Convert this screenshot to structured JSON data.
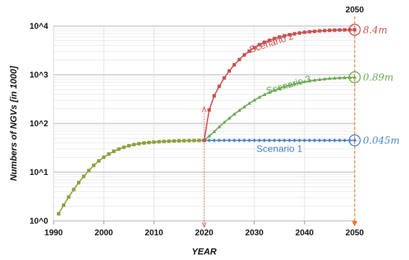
{
  "chart_data": {
    "type": "line",
    "title": "",
    "xlabel": "YEAR",
    "ylabel": "Numbers of NGVs [in 1000]",
    "x_range": [
      1990,
      2050
    ],
    "ylim": [
      1,
      10000
    ],
    "yscale": "log",
    "grid": true,
    "legend": "inline",
    "x_ticks": [
      "1990",
      "2000",
      "2010",
      "2020",
      "2030",
      "2040",
      "2050"
    ],
    "highlight_tick": "2020",
    "y_ticks": [
      {
        "label": "10^0",
        "value": 1
      },
      {
        "label": "10^1",
        "value": 10
      },
      {
        "label": "10^2",
        "value": 100
      },
      {
        "label": "10^3",
        "value": 1000
      },
      {
        "label": "10^4",
        "value": 10000
      }
    ],
    "top_marker": "2050",
    "colors": {
      "historical": "#8c9f3a",
      "scenario1": "#4a7fc1",
      "scenario2": "#c94f4f",
      "scenario3": "#6aa84f",
      "marker_2020": "#d9534f",
      "marker_2050": "#e87722",
      "highlight_tick": "#e02020"
    },
    "historical": {
      "x": [
        1991,
        1992,
        1993,
        1994,
        1995,
        1996,
        1997,
        1998,
        1999,
        2000,
        2001,
        2002,
        2003,
        2004,
        2005,
        2006,
        2007,
        2008,
        2009,
        2010,
        2011,
        2012,
        2013,
        2014,
        2015,
        2016,
        2017,
        2018,
        2019,
        2020
      ],
      "y": [
        1.4,
        2.1,
        3.1,
        4.4,
        6.1,
        8.2,
        10.8,
        13.8,
        17.0,
        20.3,
        23.6,
        26.8,
        29.8,
        32.5,
        34.9,
        36.9,
        38.5,
        39.7,
        40.7,
        41.5,
        42.2,
        42.8,
        43.3,
        43.7,
        44.0,
        44.3,
        44.5,
        44.7,
        44.9,
        45.0
      ]
    },
    "series": [
      {
        "name": "Scenario 1",
        "end_label": "0.045m",
        "x": [
          2020,
          2021,
          2022,
          2023,
          2024,
          2025,
          2026,
          2027,
          2028,
          2029,
          2030,
          2031,
          2032,
          2033,
          2034,
          2035,
          2036,
          2037,
          2038,
          2039,
          2040,
          2041,
          2042,
          2043,
          2044,
          2045,
          2046,
          2047,
          2048,
          2049,
          2050
        ],
        "y": [
          45,
          45,
          45,
          45,
          45,
          45,
          45,
          45,
          45,
          45,
          45,
          45,
          45,
          45,
          45,
          45,
          45,
          45,
          45,
          45,
          45,
          45,
          45,
          45,
          45,
          45,
          45,
          45,
          45,
          45,
          45
        ]
      },
      {
        "name": "Scenario 2",
        "end_label": "8.4m",
        "x": [
          2020,
          2021,
          2022,
          2023,
          2024,
          2025,
          2026,
          2027,
          2028,
          2029,
          2030,
          2031,
          2032,
          2033,
          2034,
          2035,
          2036,
          2037,
          2038,
          2039,
          2040,
          2041,
          2042,
          2043,
          2044,
          2045,
          2046,
          2047,
          2048,
          2049,
          2050
        ],
        "y": [
          45,
          190,
          370,
          580,
          860,
          1200,
          1600,
          2050,
          2550,
          3050,
          3600,
          4150,
          4650,
          5100,
          5550,
          5950,
          6300,
          6650,
          6950,
          7200,
          7450,
          7650,
          7800,
          7950,
          8050,
          8150,
          8230,
          8290,
          8340,
          8370,
          8400
        ]
      },
      {
        "name": "Scenario 3",
        "end_label": "0.89m",
        "x": [
          2020,
          2021,
          2022,
          2023,
          2024,
          2025,
          2026,
          2027,
          2028,
          2029,
          2030,
          2031,
          2032,
          2033,
          2034,
          2035,
          2036,
          2037,
          2038,
          2039,
          2040,
          2041,
          2042,
          2043,
          2044,
          2045,
          2046,
          2047,
          2048,
          2049,
          2050
        ],
        "y": [
          45,
          55,
          68,
          85,
          105,
          128,
          155,
          185,
          220,
          258,
          300,
          345,
          390,
          435,
          480,
          525,
          570,
          612,
          650,
          687,
          720,
          750,
          775,
          798,
          818,
          835,
          850,
          862,
          873,
          882,
          890
        ]
      }
    ],
    "vertical_markers": [
      {
        "x": 2020,
        "style": "dotted"
      },
      {
        "x": 2050,
        "style": "dashed"
      }
    ]
  }
}
